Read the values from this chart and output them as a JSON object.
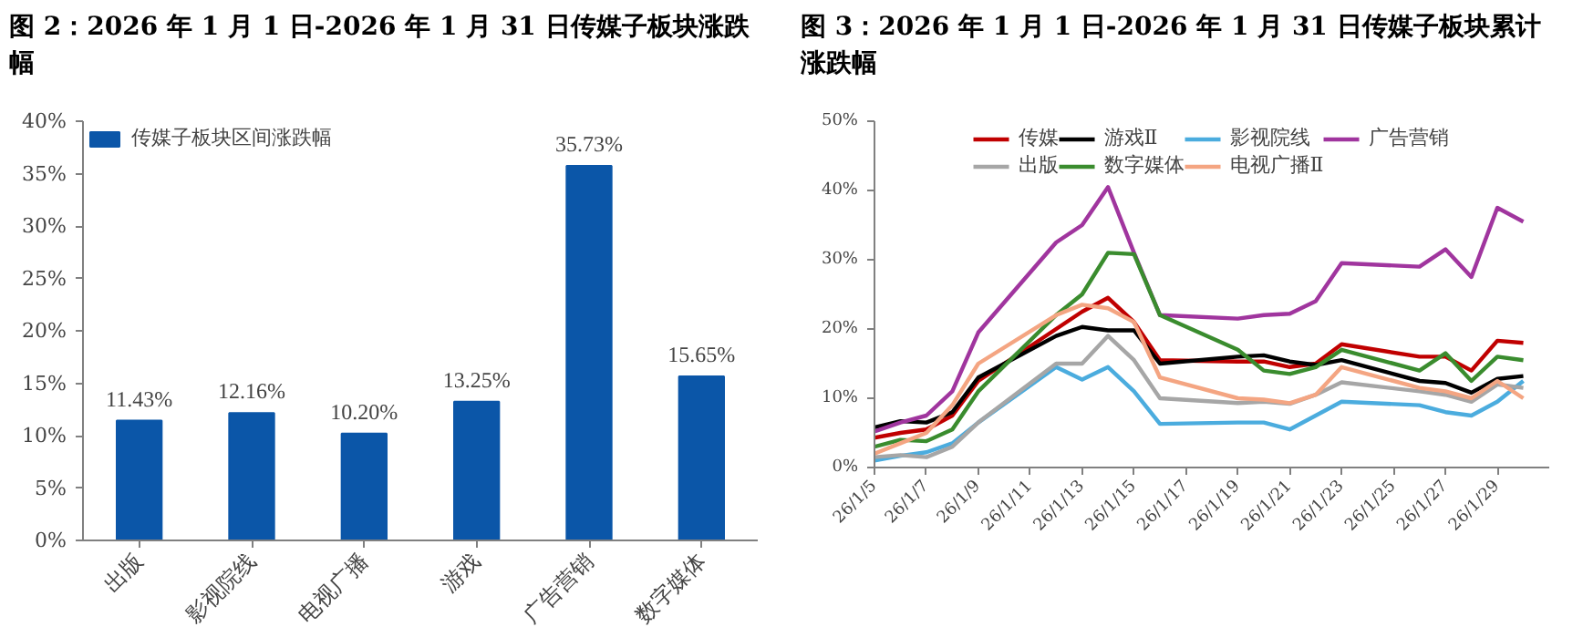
{
  "chart_data": [
    {
      "type": "bar",
      "title": "图 2：2026 年 1 月 1 日-2026 年 1 月 31 日传媒子板块涨跌幅",
      "categories": [
        "出版",
        "影视院线",
        "电视广播",
        "游戏",
        "广告营销",
        "数字媒体"
      ],
      "series": [
        {
          "name": "传媒子板块区间涨跌幅",
          "color": "#0b56a8",
          "values": [
            11.43,
            12.16,
            10.2,
            13.25,
            35.73,
            15.65
          ],
          "value_labels": [
            "11.43%",
            "12.16%",
            "10.20%",
            "13.25%",
            "35.73%",
            "15.65%"
          ]
        }
      ],
      "ylim": [
        0,
        40
      ],
      "yticks": [
        {
          "value": 0,
          "label": "0%"
        },
        {
          "value": 5,
          "label": "5%"
        },
        {
          "value": 10,
          "label": "10%"
        },
        {
          "value": 15,
          "label": "15%"
        },
        {
          "value": 20,
          "label": "20%"
        },
        {
          "value": 25,
          "label": "25%"
        },
        {
          "value": 30,
          "label": "30%"
        },
        {
          "value": 35,
          "label": "35%"
        },
        {
          "value": 40,
          "label": "40%"
        }
      ],
      "grid": false,
      "legend": "top"
    },
    {
      "type": "line",
      "title": "图 3：2026 年 1 月 1 日-2026 年 1 月 31 日传媒子板块累计涨跌幅",
      "x": [
        "2026-01-05",
        "2026-01-06",
        "2026-01-07",
        "2026-01-08",
        "2026-01-09",
        "2026-01-12",
        "2026-01-13",
        "2026-01-14",
        "2026-01-15",
        "2026-01-16",
        "2026-01-19",
        "2026-01-20",
        "2026-01-21",
        "2026-01-22",
        "2026-01-23",
        "2026-01-26",
        "2026-01-27",
        "2026-01-28",
        "2026-01-29",
        "2026-01-30"
      ],
      "series": [
        {
          "name": "传媒",
          "color": "#c00000",
          "values": [
            4.3,
            5,
            5.5,
            7.5,
            12.5,
            20,
            22.5,
            24.5,
            21,
            15.5,
            15.3,
            15.3,
            14.5,
            15,
            17.8,
            16,
            16,
            14,
            18.3,
            18
          ]
        },
        {
          "name": "游戏Ⅱ",
          "color": "#000000",
          "values": [
            5.8,
            6.7,
            6.5,
            8,
            13,
            19,
            20.3,
            19.8,
            19.8,
            15,
            16,
            16.2,
            15.3,
            14.8,
            15.5,
            12.5,
            12.2,
            10.8,
            12.8,
            13.2
          ]
        },
        {
          "name": "影视院线",
          "color": "#4bacde",
          "values": [
            1,
            1.7,
            2.2,
            3.5,
            6.5,
            14.5,
            12.7,
            14.5,
            11,
            6.3,
            6.5,
            6.5,
            5.5,
            7.5,
            9.5,
            9,
            8,
            7.5,
            9.5,
            12.5
          ]
        },
        {
          "name": "广告营销",
          "color": "#a0359e",
          "values": [
            5.2,
            6.5,
            7.5,
            11,
            19.5,
            32.5,
            35,
            40.5,
            31,
            22,
            21.5,
            22,
            22.2,
            24,
            29.5,
            29,
            31.5,
            27.5,
            37.5,
            35.5
          ]
        },
        {
          "name": "出版",
          "color": "#a6a6a6",
          "values": [
            1.5,
            1.8,
            1.5,
            3,
            6.5,
            15,
            15,
            19,
            15.5,
            10,
            9.3,
            9.5,
            9.2,
            10.5,
            12.3,
            11,
            10.5,
            9.5,
            12,
            11.5
          ]
        },
        {
          "name": "数字媒体",
          "color": "#3a8c2e",
          "values": [
            3,
            4,
            3.8,
            5.5,
            11,
            22,
            25,
            31,
            30.8,
            22,
            17,
            14,
            13.5,
            14.5,
            17,
            14,
            16.5,
            12.5,
            16,
            15.5
          ]
        },
        {
          "name": "电视广播Ⅱ",
          "color": "#f4a582",
          "values": [
            2,
            3.5,
            5,
            9,
            15,
            22,
            23.5,
            23,
            21,
            13,
            10,
            9.8,
            9.3,
            10.5,
            14.5,
            11.5,
            11,
            10,
            12.5,
            10
          ]
        }
      ],
      "xlim": [
        "2026-01-05",
        "2026-01-31"
      ],
      "xticks": [
        {
          "value": "2026-01-05",
          "label": "26/1/5"
        },
        {
          "value": "2026-01-07",
          "label": "26/1/7"
        },
        {
          "value": "2026-01-09",
          "label": "26/1/9"
        },
        {
          "value": "2026-01-11",
          "label": "26/1/11"
        },
        {
          "value": "2026-01-13",
          "label": "26/1/13"
        },
        {
          "value": "2026-01-15",
          "label": "26/1/15"
        },
        {
          "value": "2026-01-17",
          "label": "26/1/17"
        },
        {
          "value": "2026-01-19",
          "label": "26/1/19"
        },
        {
          "value": "2026-01-21",
          "label": "26/1/21"
        },
        {
          "value": "2026-01-23",
          "label": "26/1/23"
        },
        {
          "value": "2026-01-25",
          "label": "26/1/25"
        },
        {
          "value": "2026-01-27",
          "label": "26/1/27"
        },
        {
          "value": "2026-01-29",
          "label": "26/1/29"
        }
      ],
      "ylim": [
        0,
        50
      ],
      "yticks": [
        {
          "value": 0,
          "label": "0%"
        },
        {
          "value": 10,
          "label": "10%"
        },
        {
          "value": 20,
          "label": "20%"
        },
        {
          "value": 30,
          "label": "30%"
        },
        {
          "value": 40,
          "label": "40%"
        },
        {
          "value": 50,
          "label": "50%"
        }
      ],
      "grid": false,
      "legend": "top"
    }
  ]
}
